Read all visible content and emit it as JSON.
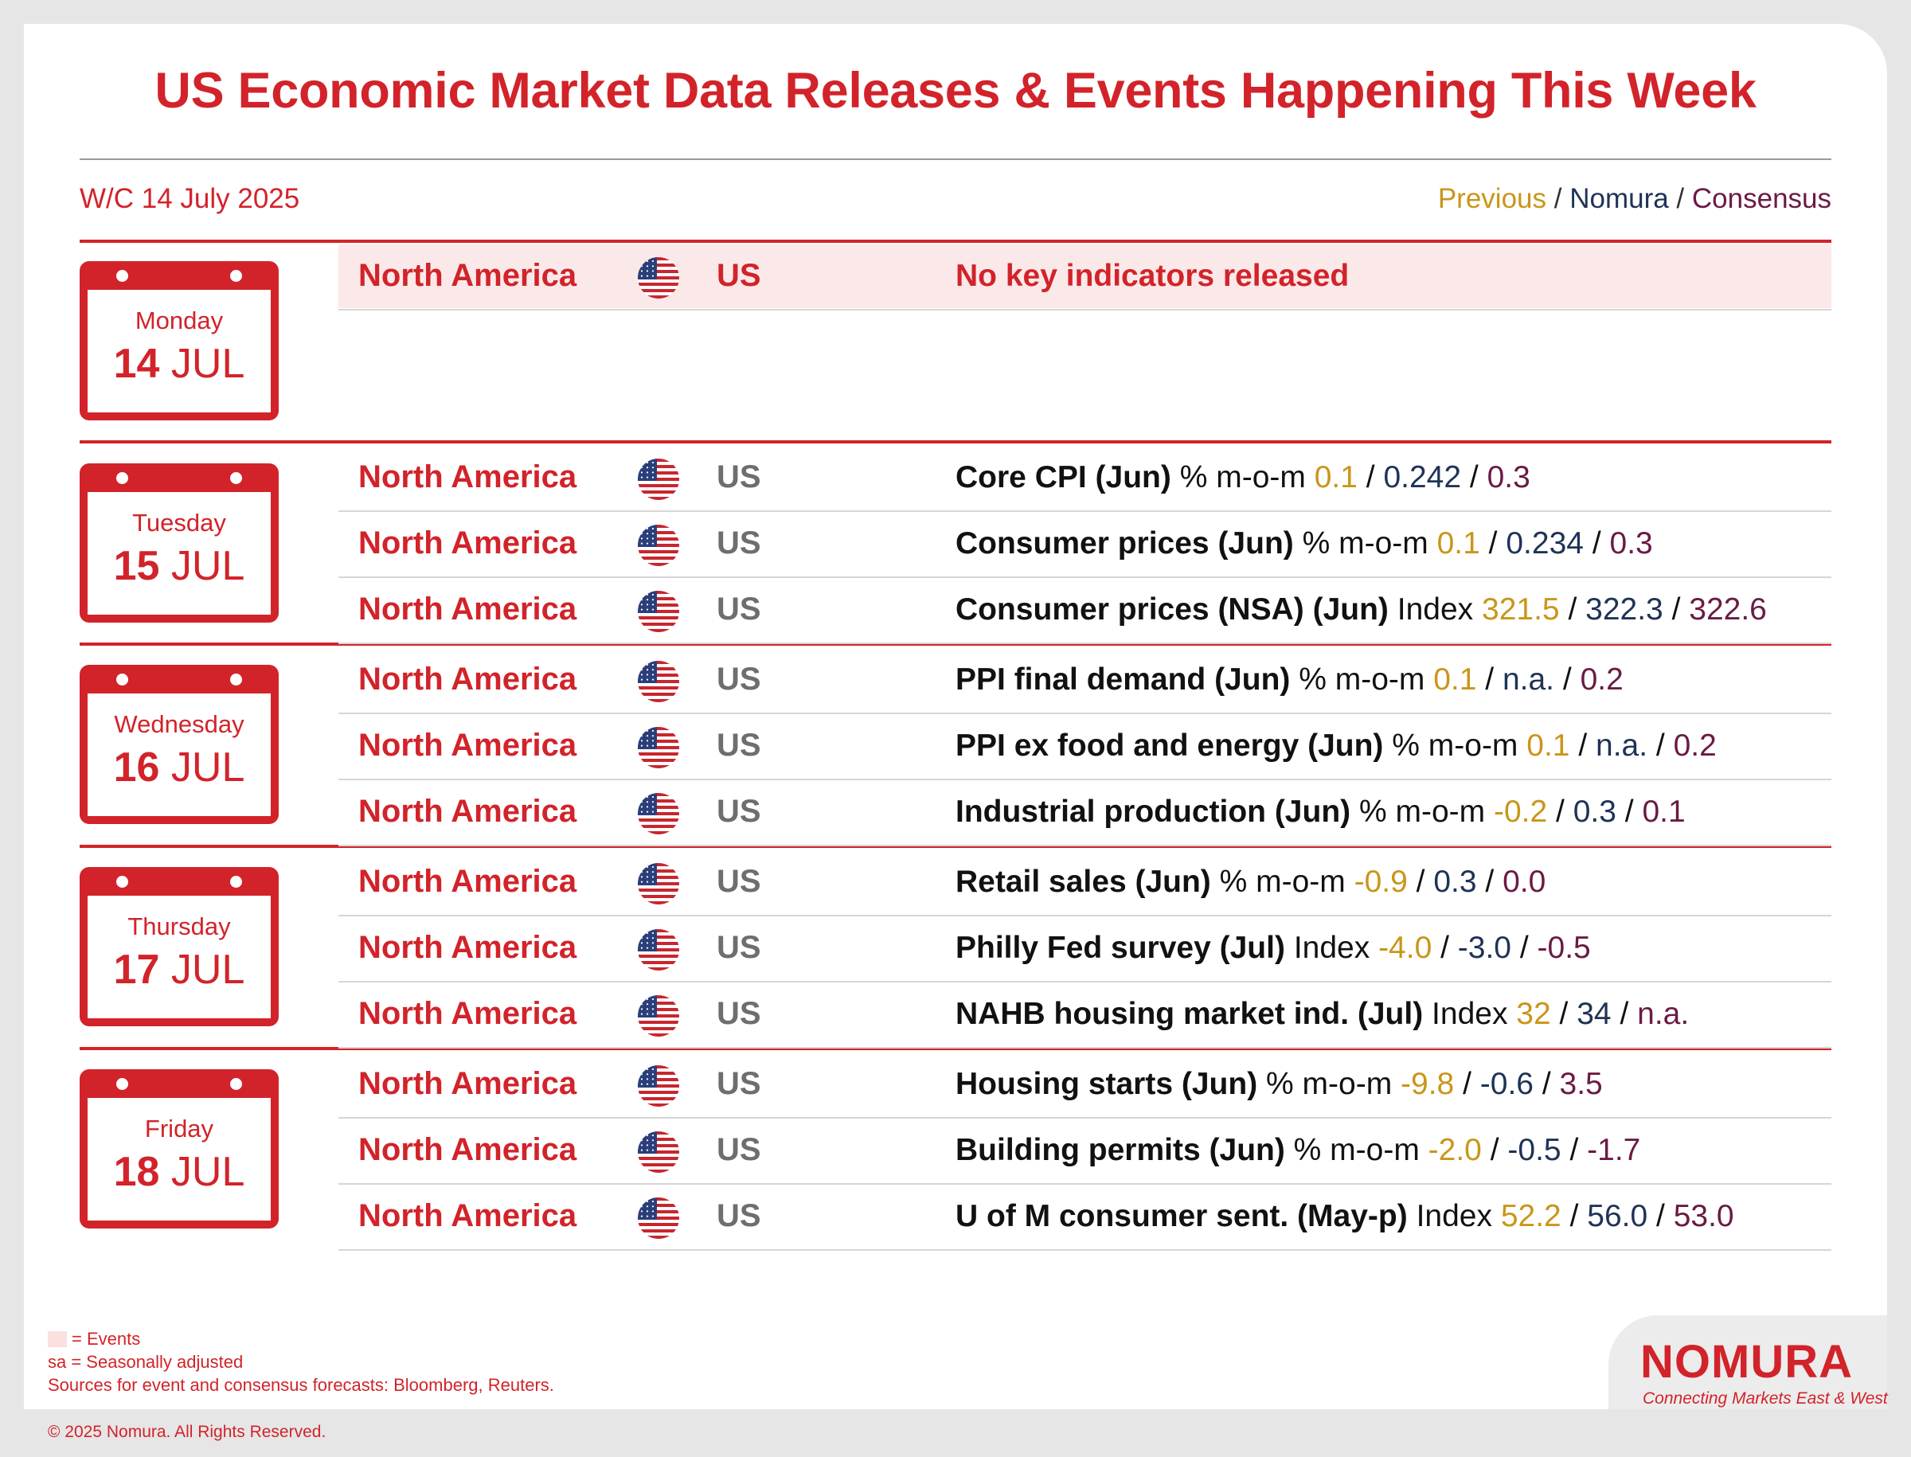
{
  "title": "US Economic Market Data Releases & Events Happening This Week",
  "week_label": "W/C 14 July 2025",
  "legend": {
    "previous": "Previous",
    "nomura": "Nomura",
    "consensus": "Consensus",
    "separator": "/"
  },
  "colors": {
    "brand_red": "#d2232a",
    "previous": "#c9961a",
    "nomura": "#1f3356",
    "consensus": "#6b1a45",
    "event_bg": "#fbe9e9"
  },
  "days": [
    {
      "weekday": "Monday",
      "day": "14",
      "month": "JUL"
    },
    {
      "weekday": "Tuesday",
      "day": "15",
      "month": "JUL"
    },
    {
      "weekday": "Wednesday",
      "day": "16",
      "month": "JUL"
    },
    {
      "weekday": "Thursday",
      "day": "17",
      "month": "JUL"
    },
    {
      "weekday": "Friday",
      "day": "18",
      "month": "JUL"
    }
  ],
  "rows": [
    {
      "region": "North America",
      "flag_icon": "us-flag-icon",
      "country": "US",
      "indicator": "No key indicators released",
      "event": true
    },
    {
      "region": "North America",
      "flag_icon": "us-flag-icon",
      "country": "US",
      "indicator": "Core CPI (Jun)",
      "unit": "% m-o-m",
      "previous": "0.1",
      "nomura": "0.242",
      "consensus": "0.3"
    },
    {
      "region": "North America",
      "flag_icon": "us-flag-icon",
      "country": "US",
      "indicator": "Consumer prices (Jun)",
      "unit": "% m-o-m",
      "previous": "0.1",
      "nomura": "0.234",
      "consensus": "0.3"
    },
    {
      "region": "North America",
      "flag_icon": "us-flag-icon",
      "country": "US",
      "indicator": "Consumer prices (NSA) (Jun)",
      "unit": "Index",
      "previous": "321.5",
      "nomura": "322.3",
      "consensus": "322.6"
    },
    {
      "region": "North America",
      "flag_icon": "us-flag-icon",
      "country": "US",
      "indicator": "PPI final demand (Jun)",
      "unit": "% m-o-m",
      "previous": "0.1",
      "nomura": "n.a.",
      "consensus": "0.2"
    },
    {
      "region": "North America",
      "flag_icon": "us-flag-icon",
      "country": "US",
      "indicator": "PPI ex food and energy (Jun)",
      "unit": "% m-o-m",
      "previous": "0.1",
      "nomura": "n.a.",
      "consensus": "0.2"
    },
    {
      "region": "North America",
      "flag_icon": "us-flag-icon",
      "country": "US",
      "indicator": "Industrial production (Jun)",
      "unit": "% m-o-m",
      "previous": "-0.2",
      "nomura": "0.3",
      "consensus": "0.1"
    },
    {
      "region": "North America",
      "flag_icon": "us-flag-icon",
      "country": "US",
      "indicator": "Retail sales (Jun)",
      "unit": "% m-o-m",
      "previous": "-0.9",
      "nomura": "0.3",
      "consensus": "0.0"
    },
    {
      "region": "North America",
      "flag_icon": "us-flag-icon",
      "country": "US",
      "indicator": "Philly Fed survey (Jul)",
      "unit": "Index",
      "previous": "-4.0",
      "nomura": "-3.0",
      "consensus": "-0.5"
    },
    {
      "region": "North America",
      "flag_icon": "us-flag-icon",
      "country": "US",
      "indicator": "NAHB housing market ind. (Jul)",
      "unit": "Index",
      "previous": "32",
      "nomura": "34",
      "consensus": "n.a."
    },
    {
      "region": "North America",
      "flag_icon": "us-flag-icon",
      "country": "US",
      "indicator": "Housing starts (Jun)",
      "unit": "% m-o-m",
      "previous": "-9.8",
      "nomura": "-0.6",
      "consensus": "3.5"
    },
    {
      "region": "North America",
      "flag_icon": "us-flag-icon",
      "country": "US",
      "indicator": "Building permits (Jun)",
      "unit": "% m-o-m",
      "previous": "-2.0",
      "nomura": "-0.5",
      "consensus": "-1.7"
    },
    {
      "region": "North America",
      "flag_icon": "us-flag-icon",
      "country": "US",
      "indicator": "U of M consumer sent. (May-p)",
      "unit": "Index",
      "previous": "52.2",
      "nomura": "56.0",
      "consensus": "53.0"
    }
  ],
  "notes": {
    "events": "= Events",
    "sa": "sa = Seasonally adjusted",
    "sources": "Sources for event and consensus forecasts: Bloomberg, Reuters."
  },
  "copyright": "© 2025 Nomura. All Rights Reserved.",
  "brand": {
    "logo": "NOMURA",
    "tagline": "Connecting Markets East & West"
  }
}
